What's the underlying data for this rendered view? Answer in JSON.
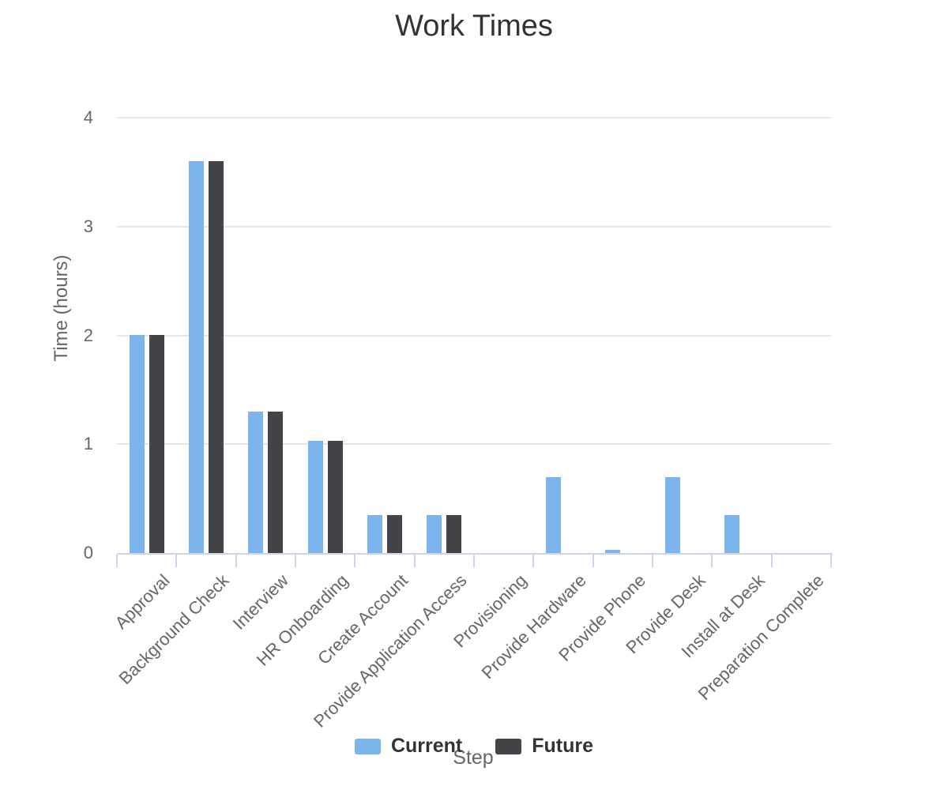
{
  "chart_data": {
    "type": "bar",
    "title": "Work Times",
    "xlabel": "Step",
    "ylabel": "Time (hours)",
    "ylim": [
      0,
      4
    ],
    "yticks": [
      0,
      1,
      2,
      3,
      4
    ],
    "grid": true,
    "legend_position": "bottom",
    "categories": [
      "Approval",
      "Background Check",
      "Interview",
      "HR Onboarding",
      "Create Account",
      "Provide Application Access",
      "Provisioning",
      "Provide Hardware",
      "Provide Phone",
      "Provide Desk",
      "Install at Desk",
      "Preparation Complete"
    ],
    "series": [
      {
        "name": "Current",
        "color": "#7cb5ec",
        "values": [
          2,
          3.6,
          1.3,
          1.03,
          0.35,
          0.35,
          0,
          0.7,
          0.03,
          0.7,
          0.35,
          0
        ]
      },
      {
        "name": "Future",
        "color": "#434348",
        "values": [
          2,
          3.6,
          1.3,
          1.03,
          0.35,
          0.35,
          0,
          0,
          0,
          0,
          0,
          0
        ]
      }
    ]
  },
  "colors": {
    "background": "#ffffff",
    "axis_line": "#ccd6eb",
    "gridline": "#e6e6e6",
    "label_text": "#666666",
    "title_text": "#333337",
    "legend_text": "#333333"
  }
}
